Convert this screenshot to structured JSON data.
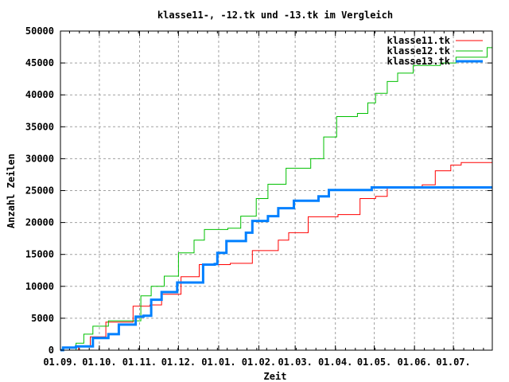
{
  "chart_data": {
    "type": "line",
    "title": "klasse11-, -12.tk und -13.tk im Vergleich",
    "xlabel": "Zeit",
    "ylabel": "Anzahl Zeilen",
    "x_unit": "days since 01.09.",
    "xlim": [
      0,
      333
    ],
    "ylim": [
      0,
      50000
    ],
    "grid": true,
    "legend_position": "top-right",
    "yticks": [
      0,
      5000,
      10000,
      15000,
      20000,
      25000,
      30000,
      35000,
      40000,
      45000,
      50000
    ],
    "xticks": [
      {
        "day": 0,
        "label": "01.09."
      },
      {
        "day": 30,
        "label": "01.10."
      },
      {
        "day": 61,
        "label": "01.11."
      },
      {
        "day": 91,
        "label": "01.12."
      },
      {
        "day": 122,
        "label": "01.01."
      },
      {
        "day": 153,
        "label": "01.02."
      },
      {
        "day": 181,
        "label": "01.03."
      },
      {
        "day": 212,
        "label": "01.04."
      },
      {
        "day": 242,
        "label": "01.05."
      },
      {
        "day": 273,
        "label": "01.06."
      },
      {
        "day": 303,
        "label": "01.07."
      }
    ],
    "series": [
      {
        "name": "klasse11.tk",
        "color": "#ff0000",
        "points": [
          [
            14,
            0
          ],
          [
            14,
            600
          ],
          [
            23,
            2100
          ],
          [
            35,
            4400
          ],
          [
            56,
            6900
          ],
          [
            69,
            7100
          ],
          [
            78,
            8750
          ],
          [
            93,
            11500
          ],
          [
            107,
            13400
          ],
          [
            131,
            13600
          ],
          [
            148,
            15600
          ],
          [
            168,
            17250
          ],
          [
            176,
            18400
          ],
          [
            191,
            20900
          ],
          [
            214,
            21250
          ],
          [
            231,
            23750
          ],
          [
            243,
            24100
          ],
          [
            252,
            25400
          ],
          [
            279,
            25900
          ],
          [
            289,
            28100
          ],
          [
            301,
            29000
          ],
          [
            309,
            29400
          ],
          [
            333,
            29400
          ]
        ]
      },
      {
        "name": "klasse12.tk",
        "color": "#00c000",
        "points": [
          [
            4,
            0
          ],
          [
            12,
            1100
          ],
          [
            18,
            2500
          ],
          [
            25,
            3750
          ],
          [
            37,
            4600
          ],
          [
            62,
            8500
          ],
          [
            70,
            10000
          ],
          [
            80,
            11600
          ],
          [
            91,
            15250
          ],
          [
            103,
            17250
          ],
          [
            111,
            18900
          ],
          [
            129,
            19100
          ],
          [
            139,
            21000
          ],
          [
            151,
            23750
          ],
          [
            160,
            26000
          ],
          [
            174,
            28500
          ],
          [
            193,
            30000
          ],
          [
            203,
            33400
          ],
          [
            213,
            36600
          ],
          [
            229,
            37100
          ],
          [
            237,
            38750
          ],
          [
            243,
            40250
          ],
          [
            252,
            42100
          ],
          [
            260,
            43400
          ],
          [
            272,
            44600
          ],
          [
            293,
            45000
          ],
          [
            305,
            45900
          ],
          [
            329,
            47400
          ],
          [
            333,
            47400
          ]
        ]
      },
      {
        "name": "klasse13.tk",
        "color": "#0080ff",
        "points": [
          [
            0,
            0
          ],
          [
            2,
            400
          ],
          [
            12,
            600
          ],
          [
            25,
            1900
          ],
          [
            37,
            2500
          ],
          [
            45,
            4000
          ],
          [
            58,
            5250
          ],
          [
            64,
            5400
          ],
          [
            70,
            7900
          ],
          [
            78,
            9100
          ],
          [
            90,
            10600
          ],
          [
            110,
            13400
          ],
          [
            119,
            13500
          ],
          [
            121,
            15250
          ],
          [
            128,
            17100
          ],
          [
            143,
            18400
          ],
          [
            148,
            20250
          ],
          [
            160,
            21000
          ],
          [
            168,
            22250
          ],
          [
            180,
            23400
          ],
          [
            199,
            24100
          ],
          [
            207,
            25100
          ],
          [
            228,
            25100
          ],
          [
            240,
            25500
          ],
          [
            333,
            25500
          ]
        ]
      }
    ]
  }
}
